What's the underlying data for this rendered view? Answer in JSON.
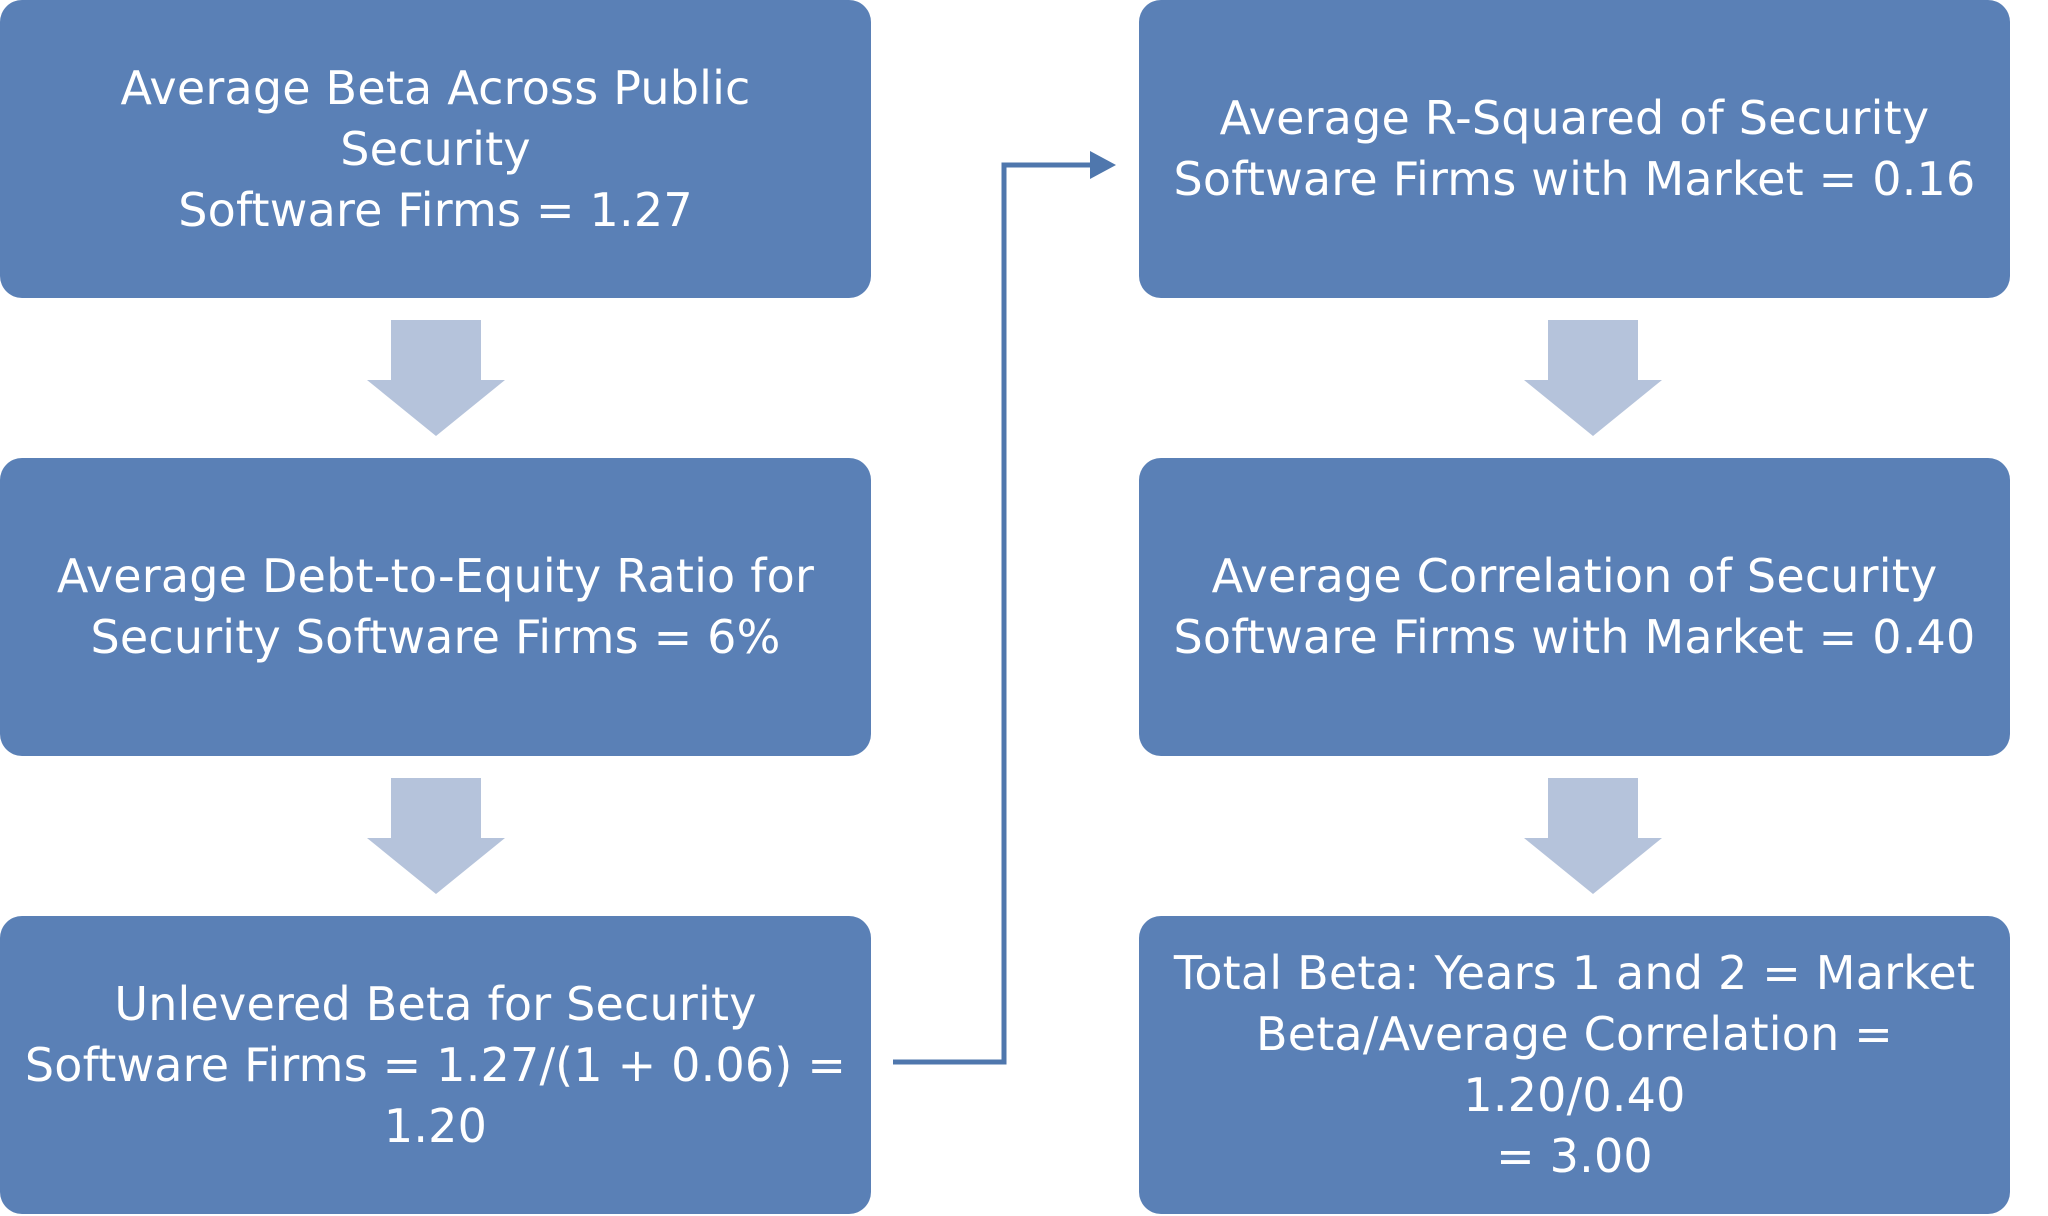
{
  "colors": {
    "box_fill": "#5a80b6",
    "box_text": "#ffffff",
    "arrow_fill": "#b5c3db",
    "connector": "#4f77ad"
  },
  "left_column": [
    {
      "text": "Average Beta Across Public Security\nSoftware Firms = 1.27"
    },
    {
      "text": "Average Debt-to-Equity Ratio for\nSecurity Software Firms = 6%"
    },
    {
      "text": "Unlevered Beta for Security\nSoftware Firms = 1.27/(1 + 0.06) =\n1.20"
    }
  ],
  "right_column": [
    {
      "text": "Average R-Squared of Security\nSoftware Firms with Market = 0.16"
    },
    {
      "text": "Average Correlation of Security\nSoftware Firms with Market = 0.40"
    },
    {
      "text": "Total Beta: Years 1 and 2 = Market\nBeta/Average Correlation = 1.20/0.40\n= 3.00"
    }
  ]
}
